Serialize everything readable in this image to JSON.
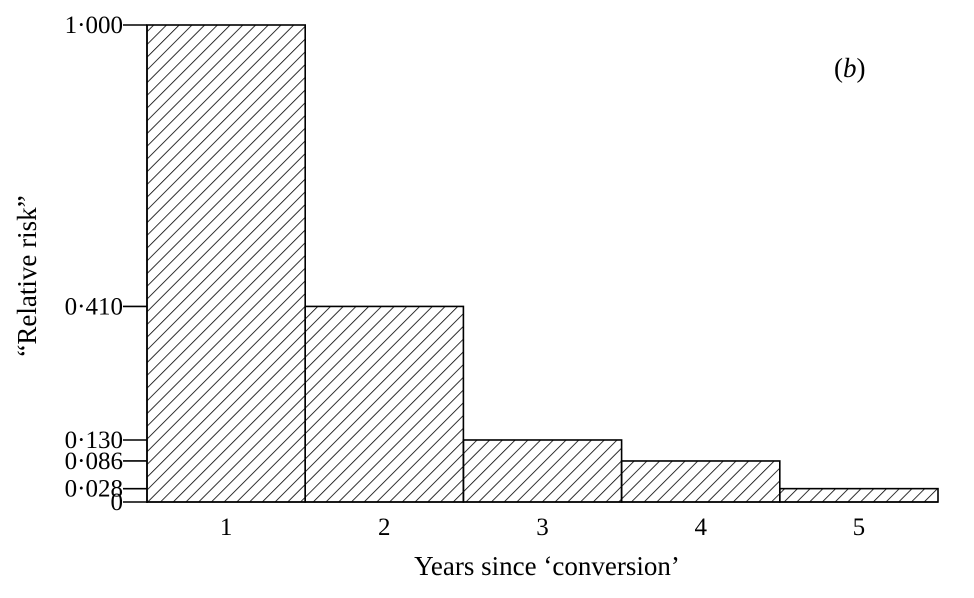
{
  "chart_data": {
    "type": "bar",
    "panel_label": "b",
    "categories": [
      "1",
      "2",
      "3",
      "4",
      "5"
    ],
    "values": [
      1.0,
      0.41,
      0.13,
      0.086,
      0.028
    ],
    "xlabel": "Years since ‘conversion’",
    "ylabel": "“Relative risk”",
    "ylim": [
      0,
      1.0
    ],
    "y_ticks": [
      {
        "value": 1.0,
        "label": "1·000"
      },
      {
        "value": 0.41,
        "label": "0·410"
      },
      {
        "value": 0.13,
        "label": "0·130"
      },
      {
        "value": 0.086,
        "label": "0·086"
      },
      {
        "value": 0.028,
        "label": "0·028"
      },
      {
        "value": 0,
        "label": "0"
      }
    ],
    "bar_fill": "diagonal-hatch",
    "grid": false,
    "legend": "none"
  }
}
